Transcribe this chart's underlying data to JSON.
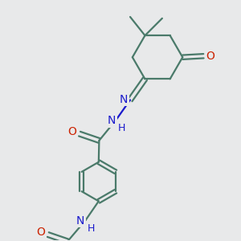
{
  "bg_color": "#e8e9ea",
  "bond_color": "#4a7a6a",
  "N_color": "#1a1acc",
  "O_color": "#cc2200",
  "lw": 1.6,
  "figsize": [
    3.0,
    3.0
  ],
  "dpi": 100,
  "xlim": [
    0,
    10
  ],
  "ylim": [
    0,
    10
  ]
}
